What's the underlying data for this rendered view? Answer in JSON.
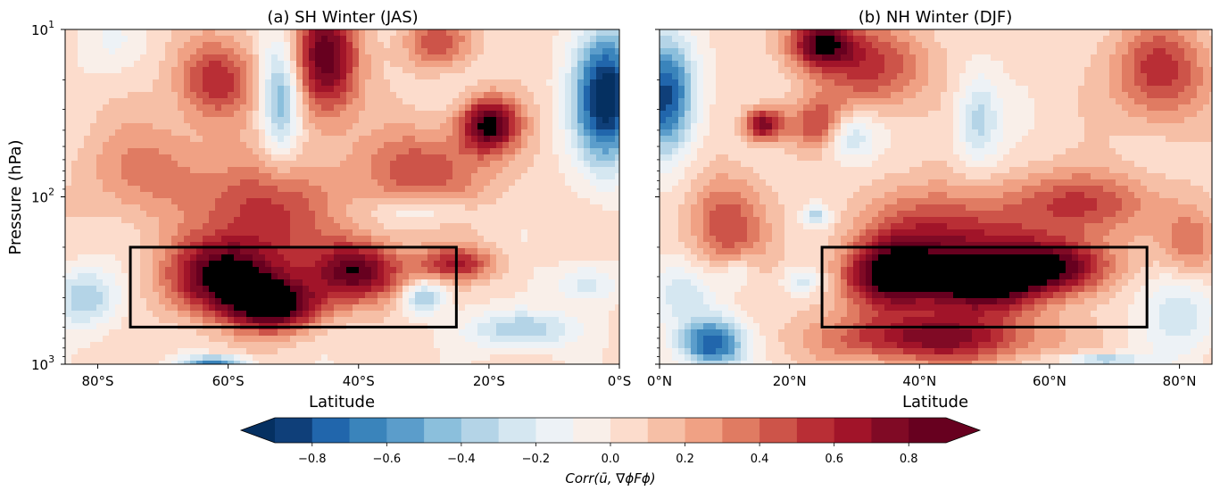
{
  "chart_data": [
    {
      "type": "heatmap",
      "title": "(a) SH Winter (JAS)",
      "xlabel": "Latitude",
      "ylabel": "Pressure (hPa)",
      "x_ticks": [
        "80°S",
        "60°S",
        "40°S",
        "20°S",
        "0°S"
      ],
      "x_tick_values": [
        -80,
        -60,
        -40,
        -20,
        0
      ],
      "xlim": [
        -85,
        0
      ],
      "y_ticks": [
        "10",
        "10",
        "10"
      ],
      "y_tick_exponents": [
        "1",
        "2",
        "3"
      ],
      "y_tick_values": [
        10,
        100,
        1000
      ],
      "ylim": [
        10,
        1000
      ],
      "y_scale": "log",
      "y_inverted": true,
      "box": {
        "lat": [
          -75,
          -25
        ],
        "pressure_hPa": [
          200,
          600
        ]
      },
      "blobs": [
        {
          "lat": -60,
          "p": 300,
          "r": 0.95,
          "sx": 9,
          "sy": 0.22
        },
        {
          "lat": -53,
          "p": 450,
          "r": 0.9,
          "sx": 7,
          "sy": 0.15
        },
        {
          "lat": -40,
          "p": 280,
          "r": 0.85,
          "sx": 7,
          "sy": 0.18
        },
        {
          "lat": -62,
          "p": 20,
          "r": 0.55,
          "sx": 6,
          "sy": 0.25
        },
        {
          "lat": -45,
          "p": 15,
          "r": 0.85,
          "sx": 5,
          "sy": 0.35
        },
        {
          "lat": -20,
          "p": 37,
          "r": 0.9,
          "sx": 4.5,
          "sy": 0.16
        },
        {
          "lat": -28,
          "p": 12,
          "r": 0.45,
          "sx": 5,
          "sy": 0.15
        },
        {
          "lat": -54,
          "p": 120,
          "r": 0.5,
          "sx": 10,
          "sy": 0.3
        },
        {
          "lat": -30,
          "p": 70,
          "r": 0.45,
          "sx": 10,
          "sy": 0.25
        },
        {
          "lat": -72,
          "p": 70,
          "r": 0.3,
          "sx": 10,
          "sy": 0.3
        },
        {
          "lat": -25,
          "p": 250,
          "r": 0.55,
          "sx": 6,
          "sy": 0.1
        },
        {
          "lat": -52,
          "p": 25,
          "r": -0.6,
          "sx": 3,
          "sy": 0.35
        },
        {
          "lat": -2,
          "p": 25,
          "r": -1.05,
          "sx": 5,
          "sy": 0.4
        },
        {
          "lat": -30,
          "p": 120,
          "r": -0.25,
          "sx": 7,
          "sy": 0.08
        },
        {
          "lat": -82,
          "p": 400,
          "r": -0.45,
          "sx": 5,
          "sy": 0.18
        },
        {
          "lat": -15,
          "p": 620,
          "r": -0.45,
          "sx": 8,
          "sy": 0.12
        },
        {
          "lat": -5,
          "p": 330,
          "r": -0.3,
          "sx": 5,
          "sy": 0.12
        },
        {
          "lat": -62,
          "p": 980,
          "r": -0.7,
          "sx": 5,
          "sy": 0.04
        },
        {
          "lat": -30,
          "p": 400,
          "r": -0.5,
          "sx": 3,
          "sy": 0.1
        },
        {
          "lat": -78,
          "p": 12,
          "r": -0.15,
          "sx": 5,
          "sy": 0.2
        }
      ]
    },
    {
      "type": "heatmap",
      "title": "(b) NH Winter (DJF)",
      "xlabel": "Latitude",
      "x_ticks": [
        "0°N",
        "20°N",
        "40°N",
        "60°N",
        "80°N"
      ],
      "x_tick_values": [
        0,
        20,
        40,
        60,
        80
      ],
      "xlim": [
        0,
        85
      ],
      "y_scale": "log",
      "ylim": [
        10,
        1000
      ],
      "y_inverted": true,
      "box": {
        "lat": [
          25,
          75
        ],
        "pressure_hPa": [
          200,
          600
        ]
      },
      "blobs": [
        {
          "lat": 50,
          "p": 320,
          "r": 0.95,
          "sx": 9,
          "sy": 0.18
        },
        {
          "lat": 35,
          "p": 300,
          "r": 0.8,
          "sx": 7,
          "sy": 0.2
        },
        {
          "lat": 62,
          "p": 260,
          "r": 0.75,
          "sx": 8,
          "sy": 0.16
        },
        {
          "lat": 25,
          "p": 12,
          "r": 0.85,
          "sx": 5,
          "sy": 0.15
        },
        {
          "lat": 33,
          "p": 17,
          "r": 0.5,
          "sx": 8,
          "sy": 0.25
        },
        {
          "lat": 77,
          "p": 18,
          "r": 0.55,
          "sx": 7,
          "sy": 0.3
        },
        {
          "lat": 16,
          "p": 37,
          "r": 0.75,
          "sx": 3,
          "sy": 0.1
        },
        {
          "lat": 25,
          "p": 37,
          "r": 0.5,
          "sx": 5,
          "sy": 0.15
        },
        {
          "lat": 44,
          "p": 180,
          "r": 0.6,
          "sx": 12,
          "sy": 0.3
        },
        {
          "lat": 42,
          "p": 700,
          "r": 0.7,
          "sx": 16,
          "sy": 0.15
        },
        {
          "lat": 65,
          "p": 110,
          "r": 0.5,
          "sx": 10,
          "sy": 0.2
        },
        {
          "lat": 10,
          "p": 150,
          "r": 0.45,
          "sx": 6,
          "sy": 0.3
        },
        {
          "lat": 82,
          "p": 200,
          "r": 0.4,
          "sx": 5,
          "sy": 0.25
        },
        {
          "lat": 49,
          "p": 35,
          "r": -0.4,
          "sx": 3.5,
          "sy": 0.28
        },
        {
          "lat": 29,
          "p": 42,
          "r": -0.5,
          "sx": 4,
          "sy": 0.15
        },
        {
          "lat": 1,
          "p": 25,
          "r": -0.9,
          "sx": 4.5,
          "sy": 0.35
        },
        {
          "lat": 8,
          "p": 760,
          "r": -0.85,
          "sx": 5,
          "sy": 0.15
        },
        {
          "lat": 4,
          "p": 380,
          "r": -0.3,
          "sx": 6,
          "sy": 0.2
        },
        {
          "lat": 24,
          "p": 130,
          "r": -0.4,
          "sx": 2,
          "sy": 0.06
        },
        {
          "lat": 80,
          "p": 450,
          "r": -0.35,
          "sx": 6,
          "sy": 0.3
        },
        {
          "lat": 68,
          "p": 950,
          "r": -0.5,
          "sx": 6,
          "sy": 0.04
        },
        {
          "lat": 12,
          "p": 280,
          "r": -0.25,
          "sx": 3,
          "sy": 0.1
        },
        {
          "lat": 22,
          "p": 320,
          "r": -0.3,
          "sx": 3,
          "sy": 0.08
        }
      ]
    }
  ],
  "colorbar": {
    "label": "Corr(ū, ∇ϕFϕ)",
    "ticks": [
      "−0.8",
      "−0.6",
      "−0.4",
      "−0.2",
      "0.0",
      "0.2",
      "0.4",
      "0.6",
      "0.8"
    ],
    "tick_values": [
      -0.8,
      -0.6,
      -0.4,
      -0.2,
      0.0,
      0.2,
      0.4,
      0.6,
      0.8
    ],
    "levels": [
      -0.9,
      -0.8,
      -0.7,
      -0.6,
      -0.5,
      -0.4,
      -0.3,
      -0.2,
      -0.1,
      0.0,
      0.1,
      0.2,
      0.3,
      0.4,
      0.5,
      0.6,
      0.7,
      0.8,
      0.9
    ],
    "extend": "both",
    "colors": [
      "#053061",
      "#0f3f79",
      "#2166ac",
      "#3a84bb",
      "#5b9dcb",
      "#8bbfdc",
      "#b4d4e7",
      "#d5e7f1",
      "#edf2f6",
      "#f9efe9",
      "#fcdccc",
      "#f6bfa6",
      "#f0a184",
      "#e07b62",
      "#cd5449",
      "#b92e35",
      "#a11429",
      "#800a25",
      "#67001f"
    ]
  }
}
